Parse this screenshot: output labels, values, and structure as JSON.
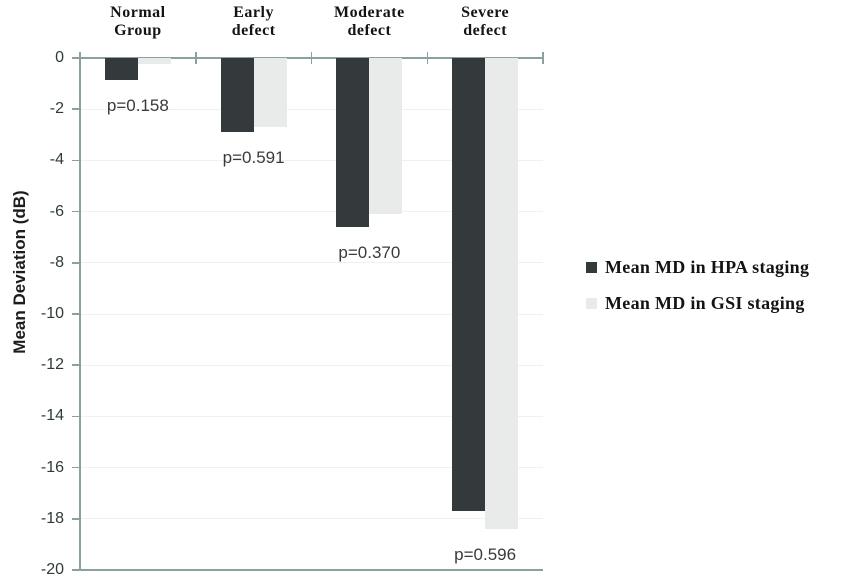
{
  "chart_data": {
    "type": "bar",
    "title": "",
    "xlabel": "",
    "ylabel": "Mean Deviation (dB)",
    "ylim": [
      -20,
      0
    ],
    "yticks": [
      0,
      -2,
      -4,
      -6,
      -8,
      -10,
      -12,
      -14,
      -16,
      -18,
      -20
    ],
    "grid": "horizontal-faint",
    "legend_position": "right-middle",
    "categories": [
      "Normal Group",
      "Early defect",
      "Moderate defect",
      "Severe defect"
    ],
    "series": [
      {
        "name": "Mean MD in HPA staging",
        "color": "#343a3c",
        "values": [
          -0.85,
          -2.9,
          -6.6,
          -17.7
        ]
      },
      {
        "name": "Mean MD in GSI staging",
        "color": "#e9ebeb",
        "values": [
          -0.25,
          -2.7,
          -6.1,
          -18.4
        ]
      }
    ],
    "annotations": [
      {
        "text": "p=0.158",
        "category_index": 0
      },
      {
        "text": "p=0.591",
        "category_index": 1
      },
      {
        "text": "p=0.370",
        "category_index": 2
      },
      {
        "text": "p=0.596",
        "category_index": 3
      }
    ],
    "colors": {
      "axis": "#8ba0a0",
      "gridline": "#eef1f1",
      "tick_text": "#2e3a3a",
      "annotation_text": "#3a3a3a",
      "category_text": "#141414"
    }
  }
}
